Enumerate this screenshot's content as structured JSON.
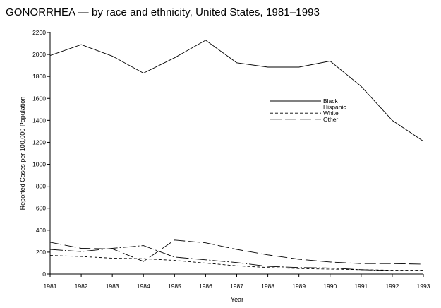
{
  "chart_data": {
    "type": "line",
    "title": "GONORRHEA — by race and ethnicity, United States, 1981–1993",
    "xlabel": "Year",
    "ylabel": "Reported Cases per 100,000 Population",
    "x": [
      1981,
      1982,
      1983,
      1984,
      1985,
      1986,
      1987,
      1988,
      1989,
      1990,
      1991,
      1992,
      1993
    ],
    "ylim": [
      0,
      2200
    ],
    "yticks": [
      0,
      200,
      400,
      600,
      800,
      1000,
      1200,
      1400,
      1600,
      1800,
      2000,
      2200
    ],
    "grid": false,
    "legend_position": "center-right",
    "series": [
      {
        "name": "Black",
        "style": "solid",
        "values": [
          1990,
          2090,
          1985,
          1830,
          1970,
          2130,
          1925,
          1885,
          1885,
          1940,
          1710,
          1400,
          1210
        ]
      },
      {
        "name": "Hispanic",
        "style": "dashdot",
        "values": [
          225,
          205,
          235,
          260,
          155,
          130,
          105,
          70,
          60,
          55,
          40,
          30,
          30
        ]
      },
      {
        "name": "White",
        "style": "dashed",
        "values": [
          170,
          160,
          145,
          140,
          125,
          100,
          75,
          60,
          50,
          45,
          40,
          35,
          35
        ]
      },
      {
        "name": "Other",
        "style": "longdash",
        "values": [
          290,
          235,
          230,
          115,
          310,
          285,
          225,
          175,
          135,
          110,
          95,
          95,
          90
        ]
      }
    ]
  }
}
